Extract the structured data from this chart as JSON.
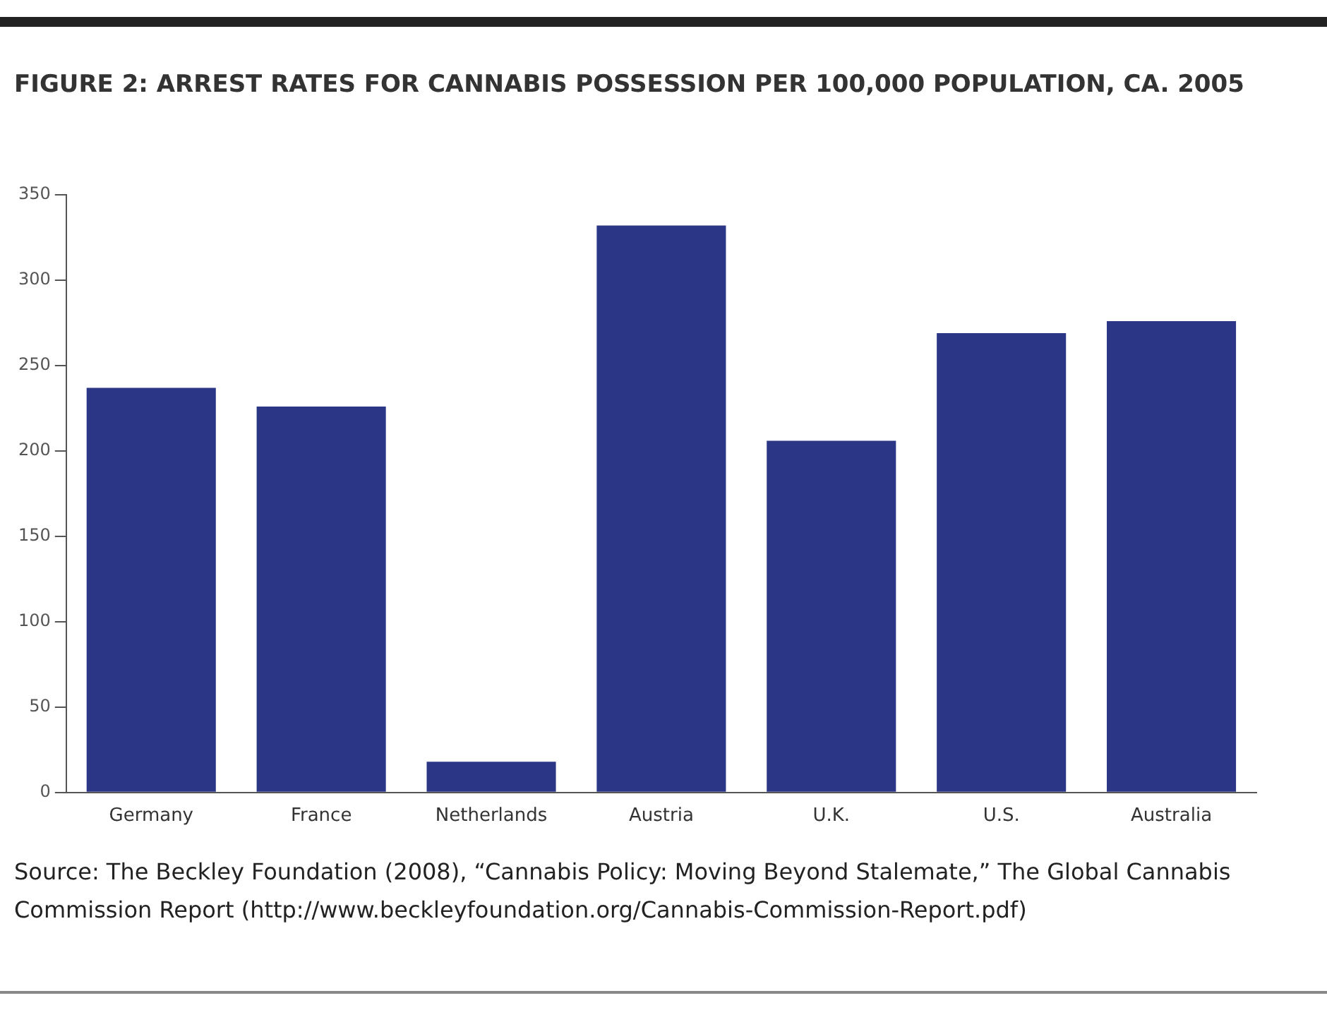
{
  "chart_data": {
    "type": "bar",
    "title": "FIGURE 2: ARREST RATES FOR CANNABIS POSSESSION PER 100,000 POPULATION, CA. 2005",
    "categories": [
      "Germany",
      "France",
      "Netherlands",
      "Austria",
      "U.K.",
      "U.S.",
      "Australia"
    ],
    "values": [
      237,
      226,
      18,
      332,
      206,
      269,
      276
    ],
    "color": "#2b3686",
    "ylim": [
      0,
      350
    ],
    "yticks": [
      0,
      50,
      100,
      150,
      200,
      250,
      300,
      350
    ],
    "grid": false,
    "legend": false,
    "annotations": [
      "Source: The Beckley Foundation (2008), “Cannabis Policy: Moving Beyond Stalemate,” The Global Cannabis Commission Report (http://www.beckleyfoundation.org/Cannabis-Commission-Report.pdf)"
    ]
  }
}
